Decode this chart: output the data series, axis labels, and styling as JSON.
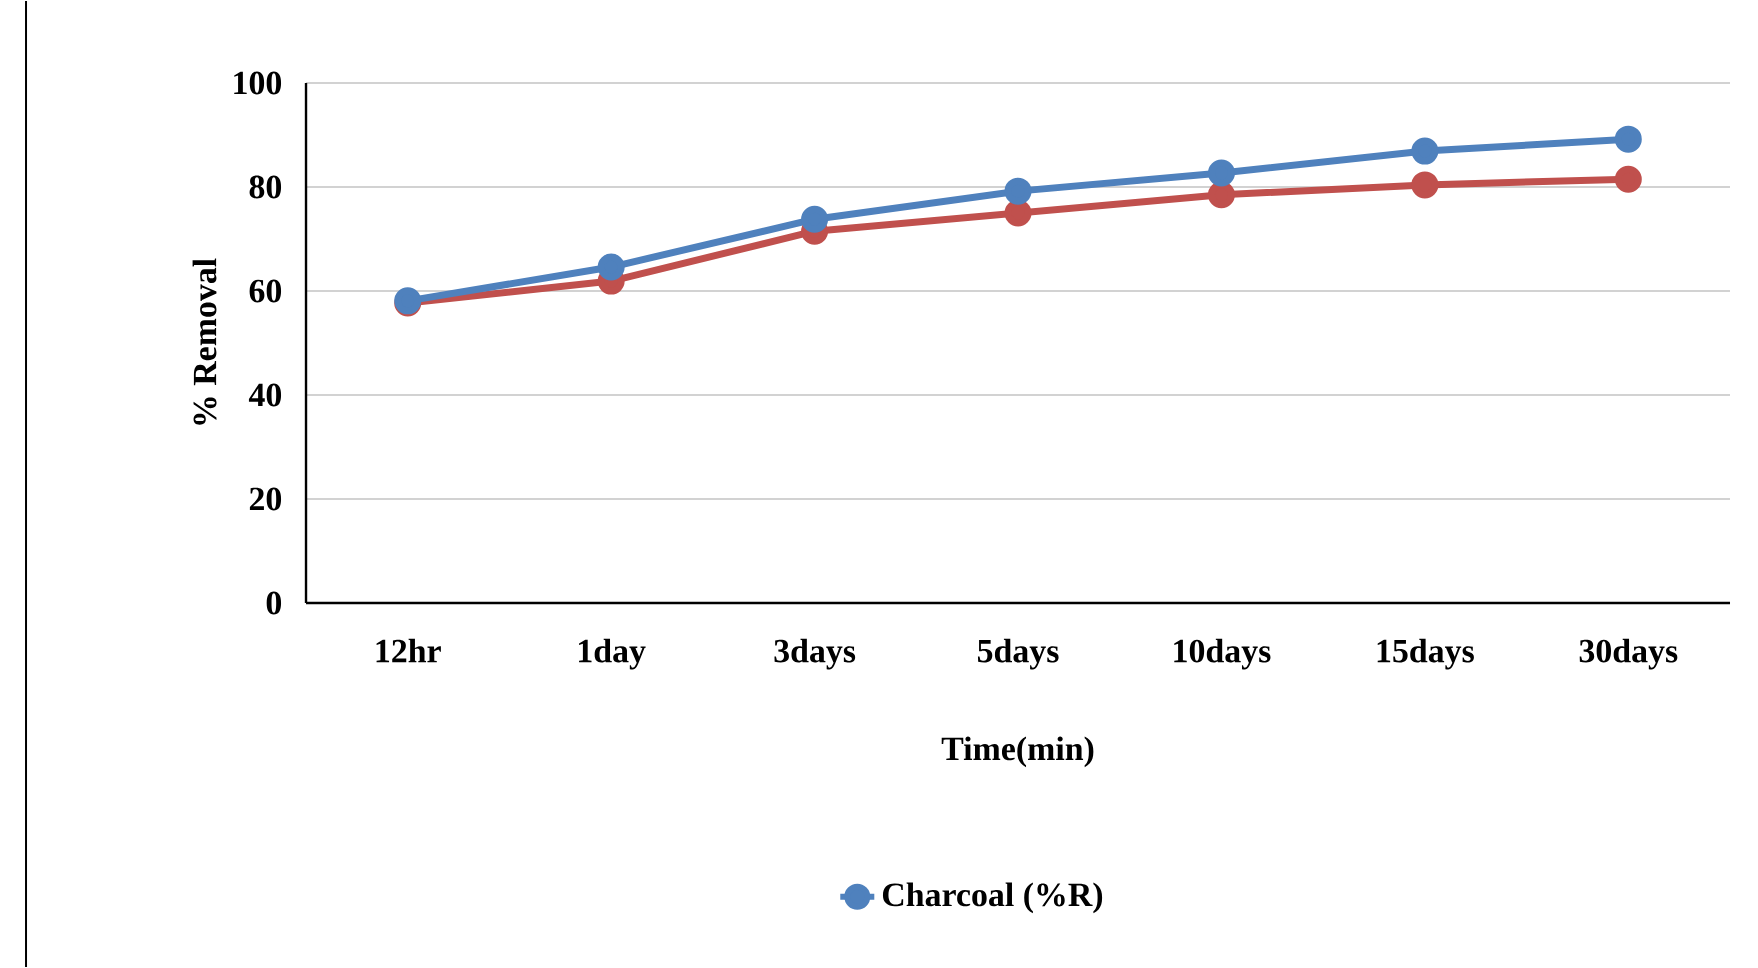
{
  "chart_data": {
    "type": "line",
    "xlabel": "Time(min)",
    "ylabel": "% Removal",
    "categories": [
      "12hr",
      "1day",
      "3days",
      "5days",
      "10days",
      "15days",
      "30days"
    ],
    "series": [
      {
        "name": "Charcoal (%R)",
        "color": "#4f81bd",
        "values": [
          58.1,
          64.6,
          73.8,
          79.2,
          82.7,
          86.9,
          89.2
        ]
      },
      {
        "color": "#c0504d",
        "values": [
          57.7,
          61.9,
          71.5,
          75.0,
          78.5,
          80.4,
          81.5
        ]
      }
    ],
    "ylim": [
      0,
      100
    ],
    "yticks": [
      0,
      20,
      40,
      60,
      80,
      100
    ],
    "grid": "y",
    "legend": "bottom",
    "marker": "circle",
    "line_style": "solid"
  }
}
